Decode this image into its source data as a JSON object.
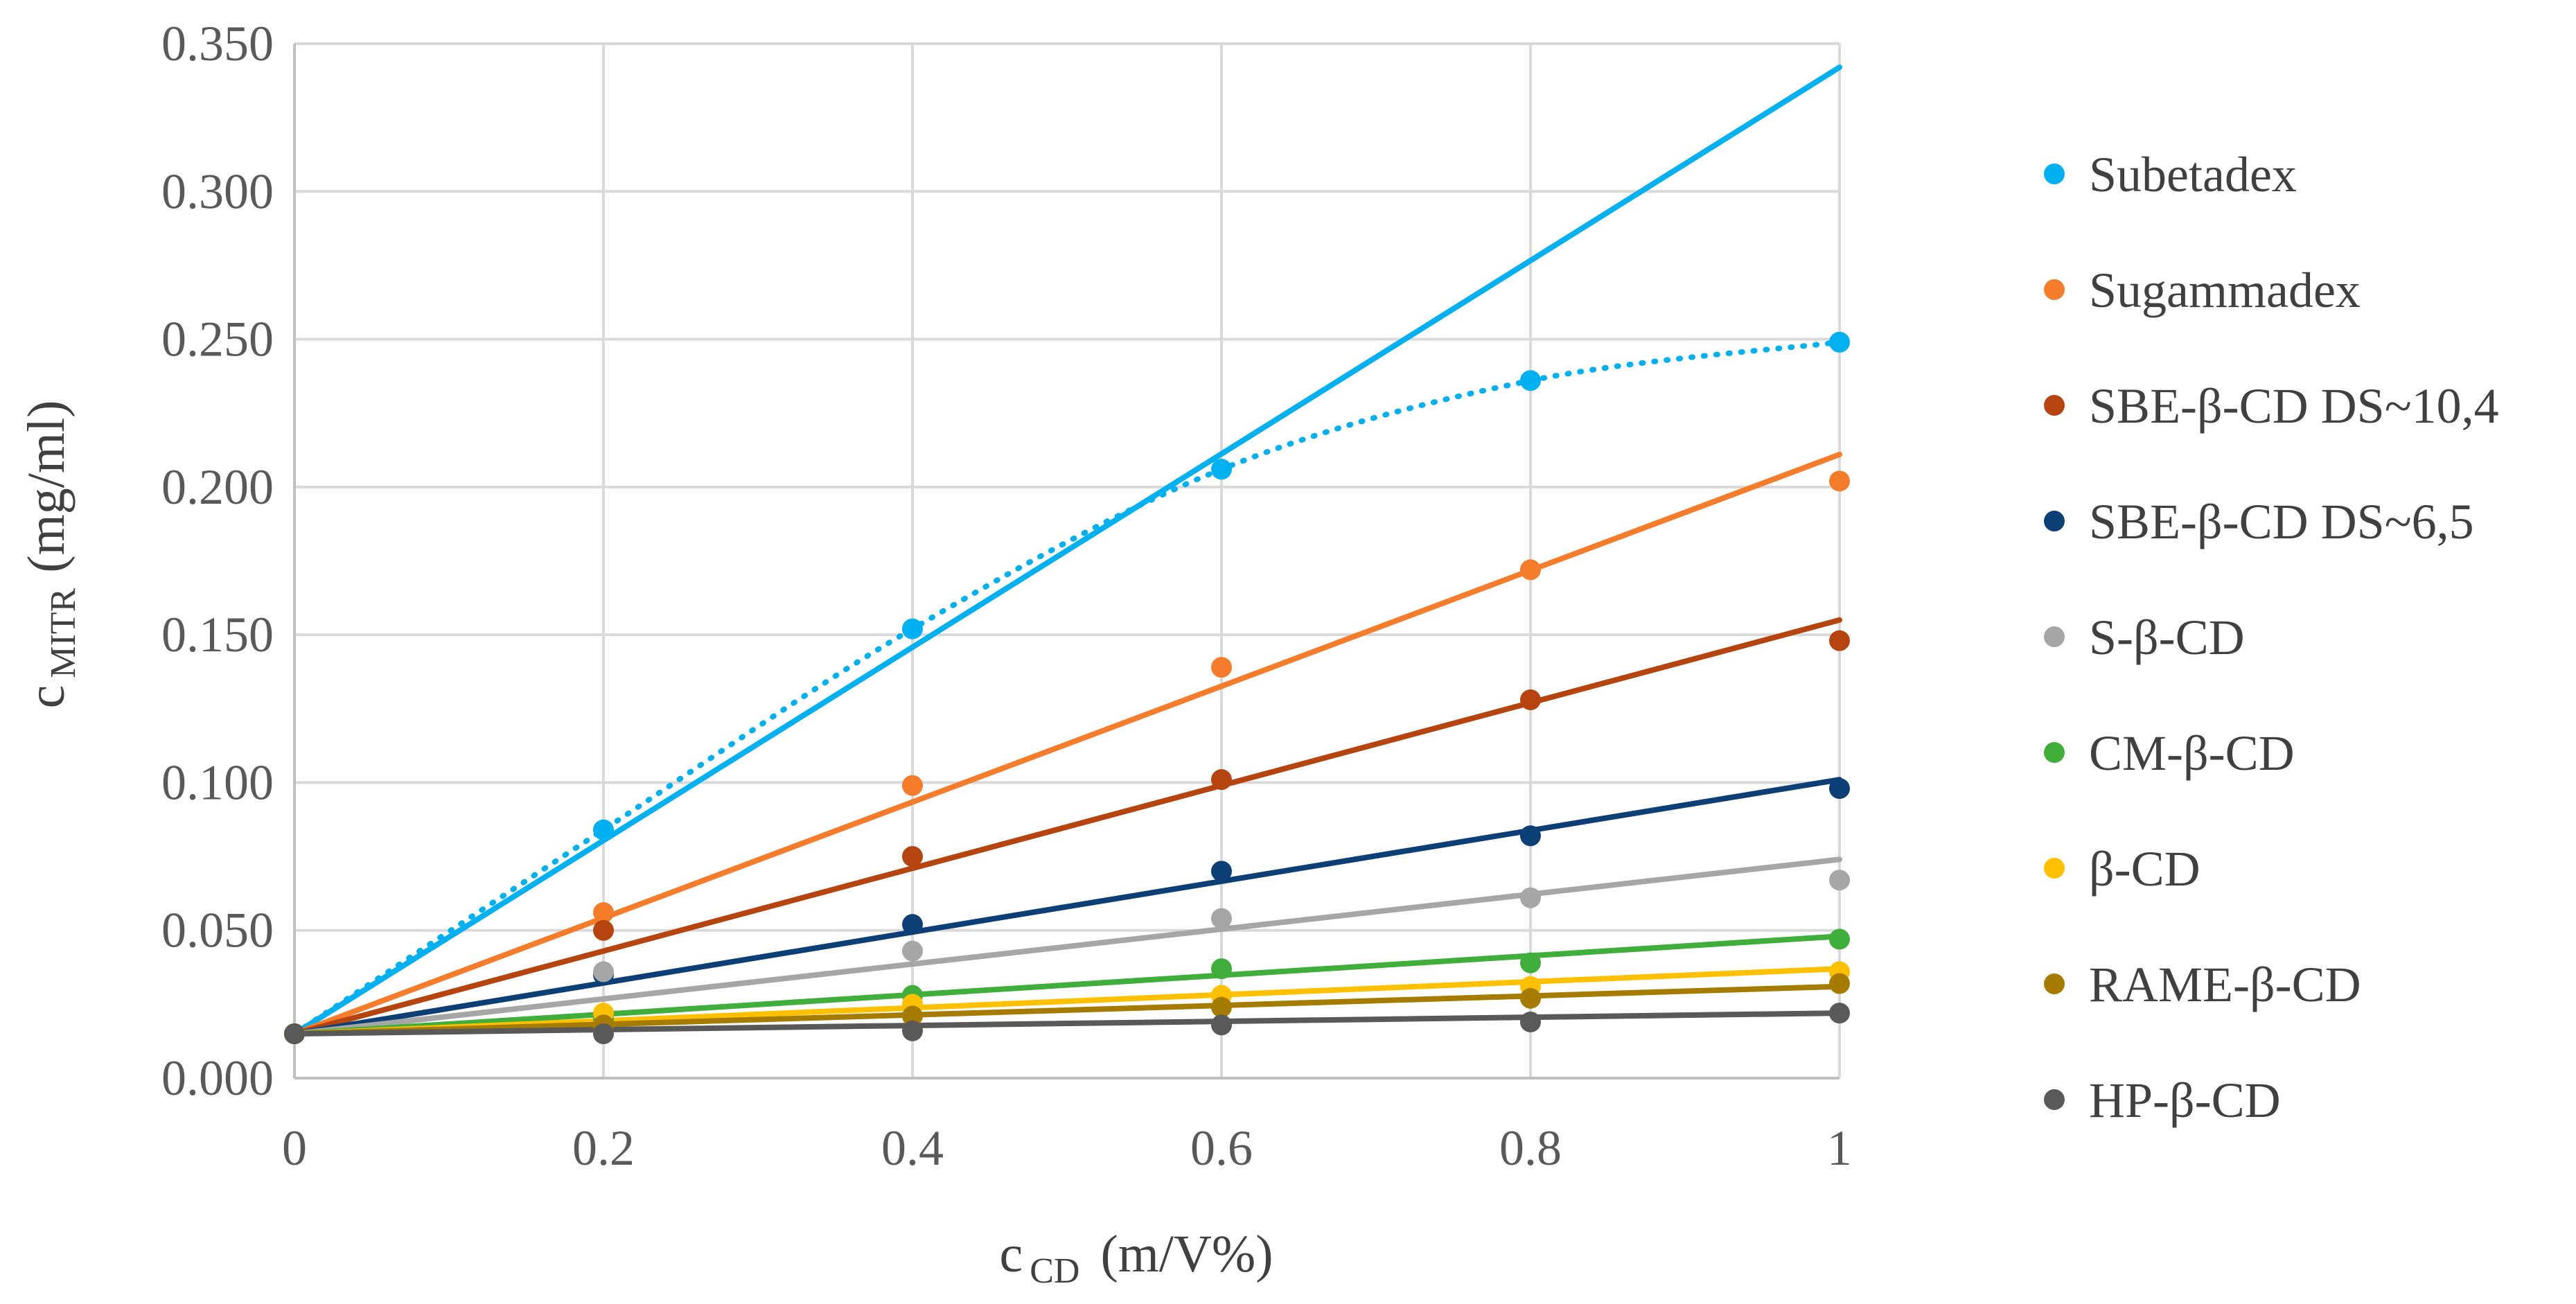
{
  "chart_data": {
    "type": "scatter",
    "title": "",
    "xlabel": {
      "main": "c",
      "sub": "CD",
      "unit": "(m/V%)"
    },
    "ylabel": {
      "main": "c",
      "sub": "MITR",
      "unit": "(mg/ml)"
    },
    "xlim": [
      0,
      1
    ],
    "ylim": [
      0,
      0.35
    ],
    "x_ticks": [
      0,
      0.2,
      0.4,
      0.6,
      0.8,
      1
    ],
    "x_tick_labels": [
      "0",
      "0.2",
      "0.4",
      "0.6",
      "0.8",
      "1"
    ],
    "y_ticks": [
      0,
      0.05,
      0.1,
      0.15,
      0.2,
      0.25,
      0.3,
      0.35
    ],
    "y_tick_labels": [
      "0.000",
      "0.050",
      "0.100",
      "0.150",
      "0.200",
      "0.250",
      "0.300",
      "0.350"
    ],
    "grid": true,
    "legend_position": "right",
    "series": [
      {
        "name": "Subetadex",
        "color": "#00b0f0",
        "x": [
          0,
          0.2,
          0.4,
          0.6,
          0.8,
          1
        ],
        "y": [
          0.015,
          0.084,
          0.152,
          0.206,
          0.236,
          0.249
        ],
        "trend_linear": [
          0.015,
          0.342
        ],
        "trend_curve": true
      },
      {
        "name": "Sugammadex",
        "color": "#f57c2a",
        "x": [
          0,
          0.2,
          0.4,
          0.6,
          0.8,
          1
        ],
        "y": [
          0.015,
          0.056,
          0.099,
          0.139,
          0.172,
          0.202
        ],
        "trend_linear": [
          0.015,
          0.211
        ]
      },
      {
        "name": "SBE-β-CD DS~10,4",
        "color": "#b5440f",
        "x": [
          0,
          0.2,
          0.4,
          0.6,
          0.8,
          1
        ],
        "y": [
          0.015,
          0.05,
          0.075,
          0.101,
          0.128,
          0.148
        ],
        "trend_linear": [
          0.015,
          0.155
        ]
      },
      {
        "name": "SBE-β-CD DS~6,5",
        "color": "#0d3f77",
        "x": [
          0,
          0.2,
          0.4,
          0.6,
          0.8,
          1
        ],
        "y": [
          0.015,
          0.035,
          0.052,
          0.07,
          0.082,
          0.098
        ],
        "trend_linear": [
          0.015,
          0.101
        ]
      },
      {
        "name": "S-β-CD",
        "color": "#a6a6a6",
        "x": [
          0,
          0.2,
          0.4,
          0.6,
          0.8,
          1
        ],
        "y": [
          0.015,
          0.036,
          0.043,
          0.054,
          0.061,
          0.067
        ],
        "trend_linear": [
          0.015,
          0.074
        ]
      },
      {
        "name": "CM-β-CD",
        "color": "#3fae3a",
        "x": [
          0,
          0.2,
          0.4,
          0.6,
          0.8,
          1
        ],
        "y": [
          0.015,
          0.02,
          0.028,
          0.037,
          0.039,
          0.047
        ],
        "trend_linear": [
          0.015,
          0.048
        ]
      },
      {
        "name": "β-CD",
        "color": "#ffc000",
        "x": [
          0,
          0.2,
          0.4,
          0.6,
          0.8,
          1
        ],
        "y": [
          0.015,
          0.022,
          0.025,
          0.028,
          0.031,
          0.036
        ],
        "trend_linear": [
          0.015,
          0.037
        ]
      },
      {
        "name": "RAME-β-CD",
        "color": "#a67c00",
        "x": [
          0,
          0.2,
          0.4,
          0.6,
          0.8,
          1
        ],
        "y": [
          0.015,
          0.018,
          0.021,
          0.024,
          0.027,
          0.032
        ],
        "trend_linear": [
          0.015,
          0.031
        ]
      },
      {
        "name": "HP-β-CD",
        "color": "#595959",
        "x": [
          0,
          0.2,
          0.4,
          0.6,
          0.8,
          1
        ],
        "y": [
          0.015,
          0.015,
          0.016,
          0.018,
          0.019,
          0.022
        ],
        "trend_linear": [
          0.015,
          0.022
        ]
      }
    ]
  }
}
